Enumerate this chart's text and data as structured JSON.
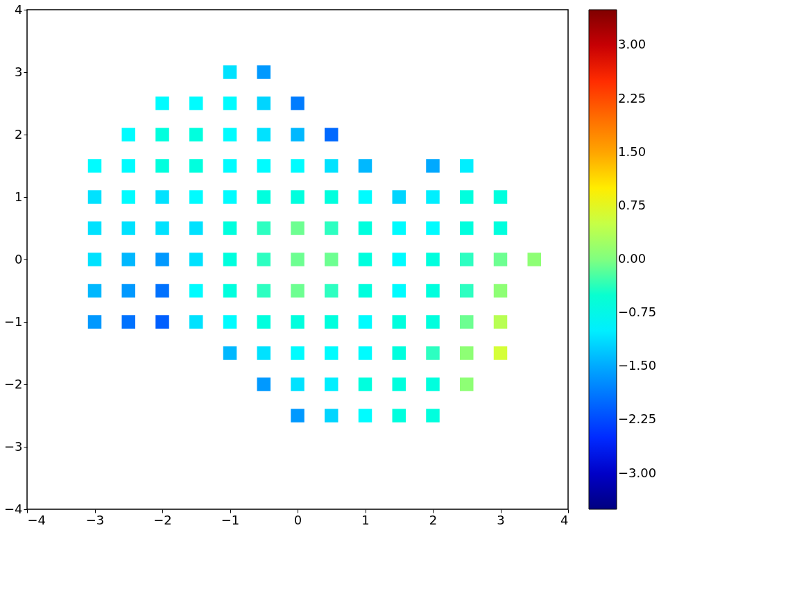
{
  "chart_data": {
    "type": "scatter",
    "marker": "square",
    "x": [
      -1,
      -0.5,
      -2,
      -1.5,
      -1,
      -0.5,
      0,
      -2.5,
      -2,
      -1.5,
      -1,
      -0.5,
      0,
      0.5,
      -3,
      -2.5,
      -2,
      -1.5,
      -1,
      -0.5,
      0,
      0.5,
      1,
      2,
      2.5,
      -3,
      -2.5,
      -2,
      -1.5,
      -1,
      -0.5,
      0,
      0.5,
      1,
      1.5,
      2,
      2.5,
      3,
      -3,
      -2.5,
      -2,
      -1.5,
      -1,
      -0.5,
      0,
      0.5,
      1,
      1.5,
      2,
      2.5,
      3,
      -3,
      -2.5,
      -2,
      -1.5,
      -1,
      -0.5,
      0,
      0.5,
      1,
      1.5,
      2,
      2.5,
      3,
      3.5,
      -3,
      -2.5,
      -2,
      -1.5,
      -1,
      -0.5,
      0,
      0.5,
      1,
      1.5,
      2,
      2.5,
      3,
      -3,
      -2.5,
      -2,
      -1.5,
      -1,
      -0.5,
      0,
      0.5,
      1,
      1.5,
      2,
      2.5,
      3,
      -1,
      -0.5,
      0,
      0.5,
      1,
      1.5,
      2,
      2.5,
      3,
      -0.5,
      0,
      0.5,
      1,
      1.5,
      2,
      2.5,
      0,
      0.5,
      1,
      1.5,
      2
    ],
    "values": [
      3,
      3,
      2.5,
      2.5,
      2.5,
      2.5,
      2.5,
      2,
      2,
      2,
      2,
      2,
      2,
      2,
      1.5,
      1.5,
      1.5,
      1.5,
      1.5,
      1.5,
      1.5,
      1.5,
      1.5,
      1.5,
      1.5,
      1,
      1,
      1,
      1,
      1,
      1,
      1,
      1,
      1,
      1,
      1,
      1,
      1,
      0.5,
      0.5,
      0.5,
      0.5,
      0.5,
      0.5,
      0.5,
      0.5,
      0.5,
      0.5,
      0.5,
      0.5,
      0.5,
      0,
      0,
      0,
      0,
      0,
      0,
      0,
      0,
      0,
      0,
      0,
      0,
      0,
      0,
      -0.5,
      -0.5,
      -0.5,
      -0.5,
      -0.5,
      -0.5,
      -0.5,
      -0.5,
      -0.5,
      -0.5,
      -0.5,
      -0.5,
      -0.5,
      -1,
      -1,
      -1,
      -1,
      -1,
      -1,
      -1,
      -1,
      -1,
      -1,
      -1,
      -1,
      -1,
      -1.5,
      -1.5,
      -1.5,
      -1.5,
      -1.5,
      -1.5,
      -1.5,
      -1.5,
      -1.5,
      -2,
      -2,
      -2,
      -2,
      -2,
      -2,
      -2,
      -2.5,
      -2.5,
      -2.5,
      -2.5,
      -2.5
    ],
    "cvalues": [
      -1.1,
      -1.6,
      -0.9,
      -0.9,
      -0.9,
      -1.2,
      -1.8,
      -0.9,
      -0.6,
      -0.6,
      -0.9,
      -1.1,
      -1.4,
      -2.0,
      -0.9,
      -0.9,
      -0.6,
      -0.6,
      -0.9,
      -0.9,
      -0.9,
      -1.1,
      -1.4,
      -1.5,
      -1.0,
      -1.1,
      -0.9,
      -1.1,
      -0.9,
      -0.9,
      -0.6,
      -0.6,
      -0.6,
      -0.9,
      -1.2,
      -1.0,
      -0.6,
      -0.6,
      -1.1,
      -1.1,
      -1.1,
      -1.1,
      -0.6,
      -0.4,
      -0.1,
      -0.4,
      -0.6,
      -0.9,
      -0.9,
      -0.6,
      -0.6,
      -1.1,
      -1.4,
      -1.6,
      -1.1,
      -0.6,
      -0.4,
      -0.1,
      -0.1,
      -0.6,
      -0.9,
      -0.6,
      -0.4,
      -0.1,
      0.1,
      -1.4,
      -1.6,
      -1.9,
      -0.9,
      -0.6,
      -0.4,
      -0.1,
      -0.4,
      -0.6,
      -0.9,
      -0.6,
      -0.4,
      0.1,
      -1.6,
      -1.9,
      -2.1,
      -1.1,
      -0.9,
      -0.6,
      -0.6,
      -0.6,
      -0.9,
      -0.6,
      -0.6,
      -0.1,
      0.4,
      -1.4,
      -1.1,
      -0.9,
      -0.9,
      -0.9,
      -0.6,
      -0.4,
      0.1,
      0.6,
      -1.6,
      -1.1,
      -1.0,
      -0.6,
      -0.6,
      -0.6,
      0.1,
      -1.6,
      -1.2,
      -0.9,
      -0.6,
      -0.6
    ],
    "xlim": [
      -4,
      4
    ],
    "ylim": [
      -4,
      4
    ],
    "xticks": [
      {
        "value": -4,
        "label": "−4"
      },
      {
        "value": -3,
        "label": "−3"
      },
      {
        "value": -2,
        "label": "−2"
      },
      {
        "value": -1,
        "label": "−1"
      },
      0,
      1,
      2,
      3,
      4
    ],
    "yticks": [
      {
        "value": -4,
        "label": "−4"
      },
      {
        "value": -3,
        "label": "−3"
      },
      {
        "value": -2,
        "label": "−2"
      },
      {
        "value": -1,
        "label": "−1"
      },
      0,
      1,
      2,
      3,
      4
    ],
    "clim": [
      -3.5,
      3.5
    ],
    "cticks": [
      {
        "value": -3,
        "label": "−3.00"
      },
      {
        "value": -2.25,
        "label": "−2.25"
      },
      {
        "value": -1.5,
        "label": "−1.50"
      },
      {
        "value": -0.75,
        "label": "−0.75"
      },
      {
        "value": 0,
        "label": "0.00"
      },
      {
        "value": 0.75,
        "label": "0.75"
      },
      {
        "value": 1.5,
        "label": "1.50"
      },
      {
        "value": 2.25,
        "label": "2.25"
      },
      {
        "value": 3,
        "label": "3.00"
      }
    ],
    "grid": false
  }
}
